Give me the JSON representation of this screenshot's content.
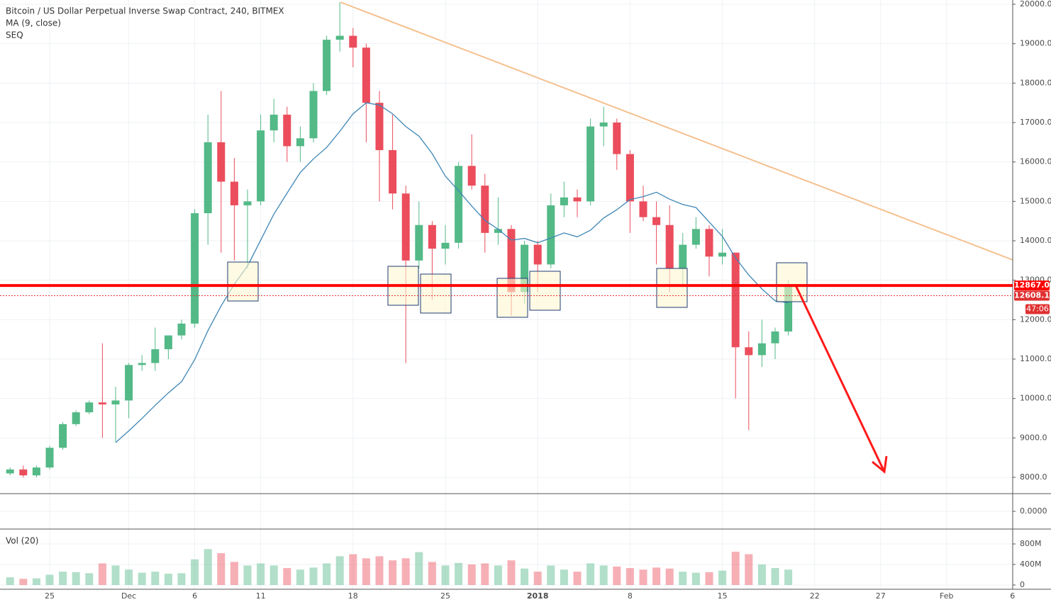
{
  "chart_data": {
    "type": "candlestick",
    "title": "Bitcoin / US Dollar Perpetual Inverse Swap Contract, 240, BITMEX",
    "categories": [
      null,
      null,
      null,
      "25",
      null,
      null,
      null,
      null,
      null,
      "Dec",
      null,
      null,
      null,
      null,
      "6",
      null,
      null,
      null,
      null,
      "11",
      null,
      null,
      null,
      null,
      null,
      null,
      "18",
      null,
      null,
      null,
      null,
      null,
      null,
      "25",
      null,
      null,
      null,
      null,
      null,
      null,
      "2018",
      null,
      null,
      null,
      null,
      null,
      null,
      "8",
      null,
      null,
      null,
      null,
      null,
      null,
      "15",
      null,
      null,
      null,
      null,
      null,
      null,
      "22",
      null,
      null,
      null,
      null,
      "27",
      null,
      null,
      null,
      null,
      "Feb",
      null,
      null,
      null,
      null,
      "6"
    ],
    "open": [
      8100,
      8200,
      8050,
      8250,
      8750,
      9350,
      9650,
      9900,
      9850,
      9950,
      10850,
      10900,
      11250,
      11600,
      11900,
      14700,
      16500,
      15500,
      14900,
      15000,
      16800,
      17200,
      16400,
      16600,
      17800,
      19100,
      19200,
      18900,
      17500,
      16300,
      15200,
      13500,
      14400,
      13800,
      13950,
      15900,
      15400,
      14200,
      14300,
      12700,
      13900,
      13400,
      14900,
      15100,
      15000,
      16900,
      17000,
      16200,
      15000,
      14600,
      14400,
      13300,
      13900,
      14300,
      13600,
      13700,
      11300,
      11100,
      11400,
      11700,
      null,
      null,
      null,
      null,
      null,
      null,
      null,
      null,
      null,
      null,
      null,
      null,
      null,
      null,
      null,
      null,
      null
    ],
    "high": [
      8250,
      8300,
      8300,
      8800,
      9400,
      9700,
      9950,
      11400,
      10300,
      10900,
      11100,
      11800,
      11600,
      12000,
      14800,
      17200,
      17800,
      16100,
      15300,
      17200,
      17600,
      17400,
      16900,
      18000,
      19200,
      20050,
      19400,
      19000,
      17800,
      17200,
      15400,
      15000,
      14500,
      14400,
      16000,
      16700,
      15700,
      15100,
      14400,
      14000,
      14000,
      15200,
      15500,
      15300,
      17100,
      17400,
      17100,
      16300,
      15400,
      15000,
      14900,
      14200,
      14600,
      14400,
      14300,
      13700,
      11700,
      12000,
      11800,
      13000,
      null,
      null,
      null,
      null,
      null,
      null,
      null,
      null,
      null,
      null,
      null,
      null,
      null,
      null,
      null,
      null,
      null
    ],
    "low": [
      8050,
      8000,
      8000,
      8200,
      8700,
      9300,
      9600,
      9000,
      8900,
      9500,
      10700,
      10700,
      11000,
      11500,
      11800,
      13900,
      13700,
      13500,
      13300,
      14900,
      16500,
      16000,
      16000,
      16500,
      17700,
      18800,
      18400,
      16500,
      15000,
      14800,
      10900,
      13300,
      12500,
      13400,
      13800,
      15300,
      13700,
      13900,
      12100,
      12400,
      12700,
      13300,
      14600,
      14600,
      14900,
      16400,
      15800,
      14200,
      14500,
      13400,
      12700,
      12900,
      13800,
      13100,
      13400,
      10000,
      9200,
      10800,
      11000,
      11600,
      null,
      null,
      null,
      null,
      null,
      null,
      null,
      null,
      null,
      null,
      null,
      null,
      null,
      null,
      null,
      null,
      null
    ],
    "close": [
      8200,
      8050,
      8250,
      8750,
      9350,
      9650,
      9900,
      9850,
      9950,
      10850,
      10900,
      11250,
      11600,
      11900,
      14700,
      16500,
      15500,
      14900,
      15000,
      16800,
      17200,
      16400,
      16600,
      17800,
      19100,
      19200,
      18900,
      17500,
      16300,
      15200,
      13500,
      14400,
      13800,
      13950,
      15900,
      15400,
      14200,
      14300,
      12700,
      13900,
      13400,
      14900,
      15100,
      15000,
      16900,
      17000,
      16200,
      15000,
      14600,
      14400,
      13300,
      13900,
      14300,
      13600,
      13700,
      11300,
      11100,
      11400,
      11700,
      12850,
      null,
      null,
      null,
      null,
      null,
      null,
      null,
      null,
      null,
      null,
      null,
      null,
      null,
      null,
      null,
      null,
      null
    ],
    "up_color": "#53b987",
    "down_color": "#eb4d5c",
    "ma": {
      "name": "MA (9, close)",
      "color": "#3f86b5",
      "values": [
        null,
        null,
        null,
        null,
        null,
        null,
        null,
        null,
        8883,
        9178,
        9494,
        9828,
        10144,
        10428,
        10989,
        11722,
        12350,
        12900,
        13361,
        14017,
        14678,
        15211,
        15733,
        16078,
        16367,
        16778,
        17222,
        17500,
        17444,
        17222,
        16900,
        16656,
        16211,
        15639,
        15272,
        14883,
        14517,
        14294,
        14017,
        14061,
        13950,
        14072,
        14200,
        14100,
        14267,
        14578,
        14789,
        15044,
        15122,
        15233,
        15056,
        14922,
        14844,
        14478,
        14111,
        13567,
        13133,
        12778,
        12478,
        12428,
        null,
        null,
        null,
        null,
        null,
        null,
        null,
        null,
        null,
        null,
        null,
        null,
        null,
        null,
        null,
        null,
        null
      ]
    },
    "ylim": [
      7587,
      20108
    ],
    "yticks": [
      {
        "value": 8000,
        "label": "8000.0"
      },
      {
        "value": 9000,
        "label": "9000.0"
      },
      {
        "value": 10000,
        "label": "10000.0"
      },
      {
        "value": 11000,
        "label": "11000.0"
      },
      {
        "value": 12000,
        "label": "12000.0"
      },
      {
        "value": 13000,
        "label": "13000.0"
      },
      {
        "value": 14000,
        "label": "14000.0"
      },
      {
        "value": 15000,
        "label": "15000.0"
      },
      {
        "value": 16000,
        "label": "16000.0"
      },
      {
        "value": 17000,
        "label": "17000.0"
      },
      {
        "value": 18000,
        "label": "18000.0"
      },
      {
        "value": 19000,
        "label": "19000.0"
      },
      {
        "value": 20000,
        "label": "20000.0"
      }
    ],
    "price_lines": [
      {
        "value": 12867,
        "label": "12867.0",
        "color": "#ff0000"
      },
      {
        "value": 12608.1,
        "label": "12608.1",
        "color": "#e03030"
      }
    ],
    "countdown": "47:06",
    "seq": {
      "name": "SEQ",
      "ylim": [
        -1,
        1
      ],
      "yticks": [
        {
          "value": 0,
          "label": "0.0000"
        }
      ]
    },
    "volume": {
      "name": "Vol (20)",
      "values": [
        150000000,
        120000000,
        130000000,
        200000000,
        260000000,
        250000000,
        230000000,
        420000000,
        380000000,
        300000000,
        240000000,
        260000000,
        220000000,
        230000000,
        500000000,
        700000000,
        620000000,
        450000000,
        380000000,
        420000000,
        380000000,
        330000000,
        300000000,
        340000000,
        420000000,
        560000000,
        600000000,
        520000000,
        560000000,
        480000000,
        520000000,
        640000000,
        450000000,
        380000000,
        430000000,
        400000000,
        420000000,
        380000000,
        480000000,
        320000000,
        260000000,
        380000000,
        300000000,
        260000000,
        420000000,
        380000000,
        360000000,
        330000000,
        300000000,
        340000000,
        320000000,
        260000000,
        240000000,
        250000000,
        280000000,
        650000000,
        600000000,
        400000000,
        330000000,
        300000000,
        null,
        null,
        null,
        null,
        null,
        null,
        null,
        null,
        null,
        null,
        null,
        null,
        null,
        null,
        null,
        null,
        null
      ],
      "ylim": [
        -83000000,
        1090000000
      ],
      "yticks": [
        {
          "value": 0,
          "label": "0"
        },
        {
          "value": 400000000,
          "label": "400M"
        },
        {
          "value": 800000000,
          "label": "800M"
        }
      ]
    },
    "grid": true
  }
}
